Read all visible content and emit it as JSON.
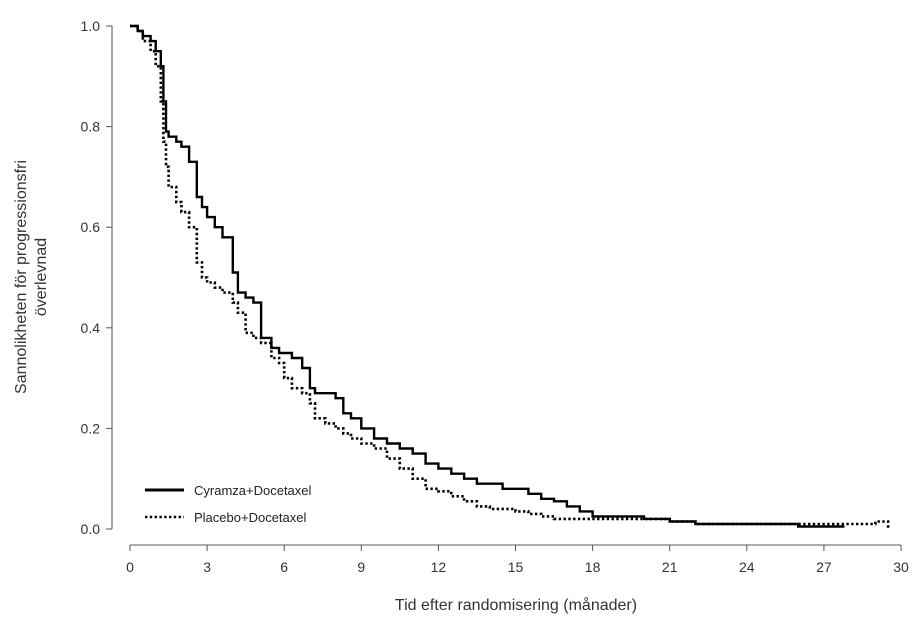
{
  "chart_data": {
    "type": "line",
    "title": "",
    "xlabel": "Tid efter randomisering (månader)",
    "ylabel": [
      "Sannolikheten för progressionsfri",
      "överlevnad"
    ],
    "xlim": [
      0,
      30
    ],
    "ylim": [
      0,
      1
    ],
    "xticks": [
      0,
      3,
      6,
      9,
      12,
      15,
      18,
      21,
      24,
      27,
      30
    ],
    "yticks": [
      0.0,
      0.2,
      0.4,
      0.6,
      0.8,
      1.0
    ],
    "xtick_labels": [
      "0",
      "3",
      "6",
      "9",
      "12",
      "15",
      "18",
      "21",
      "24",
      "27",
      "30"
    ],
    "ytick_labels": [
      "0.0",
      "0.2",
      "0.4",
      "0.6",
      "0.8",
      "1.0"
    ],
    "grid": false,
    "legend_position": "bottom-left",
    "series": [
      {
        "name": "Cyramza+Docetaxel",
        "style": "solid",
        "color": "#000000",
        "x": [
          0,
          0.3,
          0.5,
          0.8,
          1.0,
          1.2,
          1.3,
          1.4,
          1.5,
          1.8,
          2.0,
          2.3,
          2.6,
          2.8,
          3.0,
          3.3,
          3.6,
          4.0,
          4.2,
          4.5,
          4.8,
          5.1,
          5.5,
          5.8,
          6.0,
          6.3,
          6.7,
          7.0,
          7.2,
          7.6,
          8.0,
          8.3,
          8.6,
          9.0,
          9.5,
          10.0,
          10.5,
          11.0,
          11.5,
          12.0,
          12.5,
          13.0,
          13.5,
          14.0,
          14.5,
          15.0,
          15.5,
          16.0,
          16.5,
          17.0,
          17.5,
          18.0,
          19.0,
          20.0,
          21.0,
          22.0,
          23.0,
          24.0,
          25.0,
          26.0,
          27.0,
          27.8
        ],
        "y": [
          1.0,
          0.99,
          0.98,
          0.97,
          0.95,
          0.92,
          0.85,
          0.79,
          0.78,
          0.77,
          0.76,
          0.73,
          0.66,
          0.64,
          0.62,
          0.6,
          0.58,
          0.51,
          0.47,
          0.46,
          0.45,
          0.38,
          0.36,
          0.35,
          0.35,
          0.34,
          0.32,
          0.28,
          0.27,
          0.27,
          0.26,
          0.23,
          0.22,
          0.2,
          0.18,
          0.17,
          0.16,
          0.15,
          0.13,
          0.12,
          0.11,
          0.1,
          0.09,
          0.09,
          0.08,
          0.08,
          0.07,
          0.06,
          0.055,
          0.045,
          0.035,
          0.025,
          0.025,
          0.02,
          0.015,
          0.01,
          0.01,
          0.01,
          0.01,
          0.005,
          0.005,
          0.005
        ]
      },
      {
        "name": "Placebo+Docetaxel",
        "style": "dotted",
        "color": "#000000",
        "x": [
          0,
          0.3,
          0.5,
          0.8,
          1.0,
          1.2,
          1.3,
          1.4,
          1.5,
          1.8,
          2.0,
          2.3,
          2.6,
          2.8,
          3.0,
          3.3,
          3.6,
          4.0,
          4.2,
          4.5,
          4.8,
          5.1,
          5.5,
          5.8,
          6.0,
          6.3,
          6.7,
          7.0,
          7.2,
          7.6,
          8.0,
          8.3,
          8.6,
          9.0,
          9.5,
          10.0,
          10.5,
          11.0,
          11.5,
          12.0,
          12.5,
          13.0,
          13.5,
          14.0,
          14.5,
          15.0,
          15.5,
          16.0,
          16.5,
          17.0,
          17.5,
          18.0,
          19.0,
          20.0,
          21.0,
          22.0,
          23.0,
          24.0,
          25.0,
          26.0,
          27.0,
          28.0,
          29.0,
          29.5
        ],
        "y": [
          1.0,
          0.99,
          0.97,
          0.95,
          0.92,
          0.85,
          0.77,
          0.72,
          0.68,
          0.65,
          0.63,
          0.6,
          0.53,
          0.5,
          0.49,
          0.48,
          0.47,
          0.45,
          0.43,
          0.39,
          0.38,
          0.37,
          0.34,
          0.33,
          0.3,
          0.28,
          0.27,
          0.25,
          0.22,
          0.21,
          0.2,
          0.19,
          0.18,
          0.17,
          0.16,
          0.14,
          0.12,
          0.1,
          0.08,
          0.075,
          0.065,
          0.055,
          0.045,
          0.04,
          0.04,
          0.035,
          0.03,
          0.025,
          0.02,
          0.02,
          0.02,
          0.02,
          0.02,
          0.02,
          0.015,
          0.01,
          0.01,
          0.01,
          0.01,
          0.01,
          0.01,
          0.01,
          0.015,
          0.0
        ]
      }
    ]
  }
}
